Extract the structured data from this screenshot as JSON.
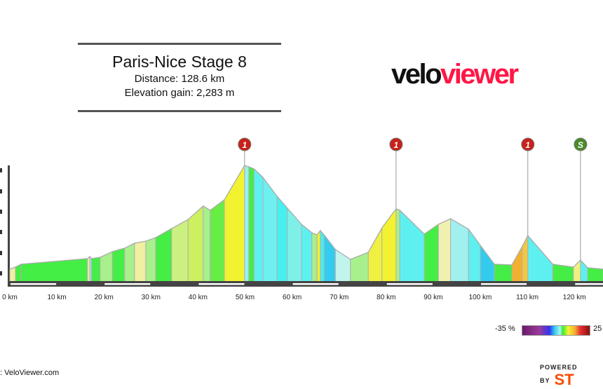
{
  "header": {
    "title": "Paris-Nice Stage 8",
    "distance": "Distance: 128.6 km",
    "elevation_gain": "Elevation gain: 2,283 m"
  },
  "logo": {
    "part1": "velo",
    "part2": "viewer",
    "color1": "#111111",
    "color2": "#ff1744"
  },
  "legend": {
    "min_label": "-35 %",
    "max_label": "25"
  },
  "footer": {
    "credit": ": VeloViewer.com",
    "powered_by": "POWERED BY",
    "brand": "ST"
  },
  "chart_data": {
    "type": "area",
    "title": "",
    "xlabel": "",
    "ylabel": "",
    "x_unit": "km",
    "x_ticks": [
      "0 km",
      "10 km",
      "20 km",
      "30 km",
      "40 km",
      "50 km",
      "60 km",
      "70 km",
      "80 km",
      "90 km",
      "100 km",
      "110 km",
      "120 km"
    ],
    "xlim": [
      0,
      128.6
    ],
    "grid": false,
    "profile": {
      "km": [
        0,
        1.2,
        2.4,
        16.5,
        17.0,
        17.4,
        19.2,
        21.8,
        24.4,
        26.5,
        28.9,
        31.0,
        34.4,
        37.9,
        41.1,
        42.6,
        45.6,
        49.9,
        50.8,
        51.9,
        53.8,
        56.8,
        59.0,
        62.0,
        64.2,
        65.3,
        66.0,
        66.8,
        69.2,
        72.4,
        76.2,
        79.1,
        82.1,
        82.9,
        88.1,
        91.1,
        93.7,
        97.5,
        100.0,
        103.0,
        106.7,
        108.9,
        110.1,
        115.4,
        119.8,
        121.3,
        122.8,
        126.1
      ],
      "elevation_m": [
        122,
        142,
        170,
        224,
        244,
        224,
        237,
        292,
        325,
        373,
        393,
        427,
        515,
        603,
        732,
        692,
        793,
        1125,
        1112,
        1092,
        1010,
        827,
        712,
        556,
        475,
        454,
        495,
        454,
        312,
        217,
        285,
        522,
        705,
        692,
        461,
        556,
        610,
        509,
        353,
        170,
        163,
        339,
        447,
        170,
        142,
        210,
        136,
        122
      ],
      "segment_colors": [
        "#f0f0a0",
        "#44ee44",
        "#44ee44",
        "#f0f0a0",
        "#8ae8f0",
        "#44ee44",
        "#a8f08c",
        "#44ee44",
        "#a8f08c",
        "#f0f0a0",
        "#a8f08c",
        "#44ee44",
        "#ccf080",
        "#ccf060",
        "#a8f08c",
        "#66ee44",
        "#f2f230",
        "#9af0f0",
        "#44ee44",
        "#5ef0f0",
        "#6ef0f0",
        "#44f0f0",
        "#7ef0e8",
        "#5ef0f0",
        "#a8f08c",
        "#f2f230",
        "#44f0f0",
        "#33ccee",
        "#c0f4ec",
        "#a8f08c",
        "#f0f040",
        "#f2f230",
        "#a8f08c",
        "#5ef0f0",
        "#44ee44",
        "#f0f0b0",
        "#a0f0f0",
        "#5ef0f0",
        "#33ccee",
        "#44ee44",
        "#f2b030",
        "#f2c840",
        "#5ef0f0",
        "#44ee44",
        "#f0f080",
        "#5ef0f0",
        "#44ee44"
      ]
    },
    "climb_markers": [
      {
        "label": "1",
        "km": 49.9,
        "color": "#c8201a"
      },
      {
        "label": "1",
        "km": 82.1,
        "color": "#c8201a"
      },
      {
        "label": "1",
        "km": 110.1,
        "color": "#c8201a"
      },
      {
        "label": "S",
        "km": 121.3,
        "color": "#4a8a2a"
      }
    ],
    "gradient_scale_percent": [
      -35,
      25
    ]
  }
}
